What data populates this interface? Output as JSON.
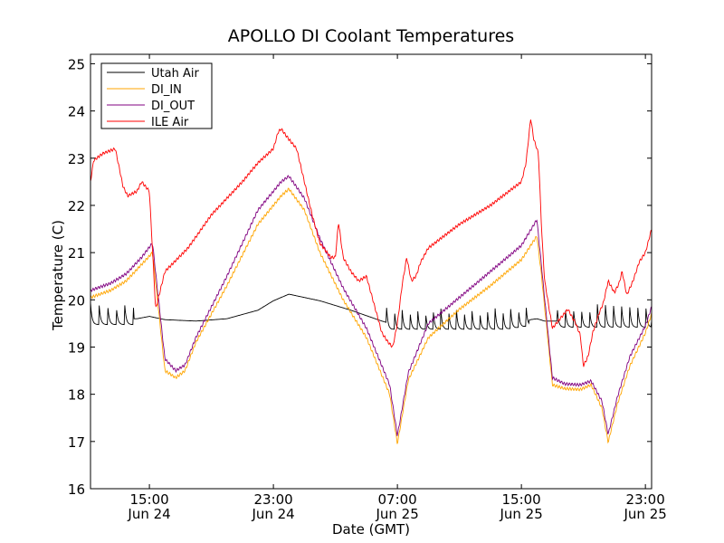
{
  "chart_data": {
    "type": "line",
    "title": "APOLLO DI Coolant Temperatures",
    "xlabel": "Date (GMT)",
    "ylabel": "Temperature (C)",
    "x_unit": "hours since Jun 24 00:00 GMT",
    "xlim": [
      11.2,
      47.4
    ],
    "ylim": [
      16,
      25.2
    ],
    "grid": false,
    "legend_position": "upper-left",
    "y_ticks": [
      16,
      17,
      18,
      19,
      20,
      21,
      22,
      23,
      24,
      25
    ],
    "x_ticks": [
      {
        "x": 15,
        "line1": "15:00",
        "line2": "Jun 24"
      },
      {
        "x": 23,
        "line1": "23:00",
        "line2": "Jun 24"
      },
      {
        "x": 31,
        "line1": "07:00",
        "line2": "Jun 25"
      },
      {
        "x": 39,
        "line1": "15:00",
        "line2": "Jun 25"
      },
      {
        "x": 47,
        "line1": "23:00",
        "line2": "Jun 25"
      }
    ],
    "series": [
      {
        "name": "Utah Air",
        "color": "#000000",
        "x": [
          11.2,
          14.2,
          15.0,
          16.0,
          18.0,
          20.0,
          22.0,
          23.0,
          24.0,
          26.0,
          28.0,
          30.0,
          30.5,
          38.0,
          39.0,
          40.0,
          40.5,
          41.5,
          42.5,
          47.4
        ],
        "y": [
          19.6,
          19.6,
          19.65,
          19.58,
          19.55,
          19.6,
          19.78,
          19.98,
          20.12,
          19.98,
          19.78,
          19.55,
          19.5,
          19.5,
          19.55,
          19.6,
          19.55,
          19.55,
          19.55,
          19.55
        ],
        "cycles": [
          {
            "from": 11.2,
            "to": 14.0,
            "period": 0.55,
            "amp": 0.62
          },
          {
            "from": 30.3,
            "to": 39.5,
            "period": 0.5,
            "amp": 0.62
          },
          {
            "from": 41.3,
            "to": 47.4,
            "period": 0.52,
            "amp": 0.65
          }
        ]
      },
      {
        "name": "DI_IN",
        "color": "#ffa500",
        "x": [
          11.2,
          12.5,
          13.5,
          14.5,
          15.2,
          16.0,
          16.7,
          17.3,
          18.0,
          20.0,
          22.0,
          23.5,
          24.0,
          25.0,
          26.0,
          27.5,
          29.0,
          30.5,
          31.0,
          31.7,
          33.0,
          35.0,
          37.0,
          39.0,
          40.0,
          40.3,
          41.0,
          41.8,
          42.8,
          43.5,
          44.2,
          44.6,
          45.2,
          46.0,
          47.0,
          47.4
        ],
        "y": [
          20.05,
          20.2,
          20.4,
          20.75,
          21.0,
          18.5,
          18.35,
          18.5,
          19.1,
          20.3,
          21.6,
          22.2,
          22.35,
          21.9,
          21.0,
          20.0,
          19.2,
          18.0,
          16.95,
          18.3,
          19.2,
          19.8,
          20.3,
          20.85,
          21.35,
          20.5,
          18.2,
          18.12,
          18.1,
          18.2,
          17.7,
          16.98,
          17.8,
          18.6,
          19.3,
          19.7
        ]
      },
      {
        "name": "DI_OUT",
        "color": "#800080",
        "x": [
          11.2,
          12.5,
          13.5,
          14.5,
          15.2,
          16.0,
          16.7,
          17.3,
          18.0,
          20.0,
          22.0,
          23.5,
          24.0,
          25.0,
          26.0,
          27.5,
          29.0,
          30.5,
          31.0,
          31.7,
          33.0,
          35.0,
          37.0,
          39.0,
          40.0,
          40.3,
          41.0,
          41.8,
          42.8,
          43.5,
          44.2,
          44.6,
          45.2,
          46.0,
          47.0,
          47.4
        ],
        "y": [
          20.2,
          20.35,
          20.55,
          20.9,
          21.2,
          18.75,
          18.5,
          18.62,
          19.2,
          20.5,
          21.9,
          22.5,
          22.62,
          22.15,
          21.3,
          20.25,
          19.4,
          18.2,
          17.12,
          18.45,
          19.5,
          20.05,
          20.6,
          21.15,
          21.7,
          20.7,
          18.35,
          18.22,
          18.2,
          18.28,
          17.85,
          17.15,
          17.95,
          18.8,
          19.45,
          19.85
        ]
      },
      {
        "name": "ILE Air",
        "color": "#ff0000",
        "x": [
          11.2,
          11.4,
          12.0,
          12.8,
          13.3,
          13.6,
          14.2,
          14.5,
          15.0,
          15.4,
          16.0,
          17.5,
          19.0,
          21.0,
          22.0,
          23.0,
          23.3,
          23.5,
          24.0,
          24.5,
          25.0,
          25.5,
          26.0,
          26.7,
          27.0,
          27.2,
          27.5,
          28.0,
          28.5,
          29.0,
          29.5,
          30.0,
          30.4,
          30.7,
          31.0,
          31.3,
          31.6,
          31.9,
          32.2,
          32.5,
          33.0,
          35.0,
          37.0,
          39.0,
          39.3,
          39.6,
          39.8,
          40.1,
          40.3,
          40.5,
          41.0,
          41.5,
          42.0,
          42.5,
          42.8,
          43.0,
          43.3,
          43.6,
          44.0,
          44.3,
          44.6,
          45.0,
          45.3,
          45.5,
          45.8,
          46.2,
          46.6,
          47.0,
          47.4
        ],
        "y": [
          22.5,
          22.95,
          23.1,
          23.2,
          22.4,
          22.2,
          22.3,
          22.5,
          22.3,
          19.8,
          20.6,
          21.1,
          21.8,
          22.5,
          22.9,
          23.2,
          23.55,
          23.62,
          23.4,
          23.2,
          22.5,
          21.8,
          21.2,
          20.9,
          20.9,
          21.65,
          20.9,
          20.6,
          20.4,
          20.5,
          19.9,
          19.3,
          19.1,
          19.0,
          19.5,
          20.3,
          20.9,
          20.4,
          20.5,
          20.8,
          21.1,
          21.6,
          22.0,
          22.5,
          22.9,
          23.85,
          23.4,
          23.1,
          21.5,
          20.4,
          19.4,
          19.6,
          19.8,
          19.5,
          19.25,
          18.6,
          18.8,
          19.3,
          19.7,
          19.95,
          20.4,
          20.15,
          20.35,
          20.6,
          20.1,
          20.4,
          20.8,
          21.0,
          21.5
        ]
      }
    ]
  }
}
